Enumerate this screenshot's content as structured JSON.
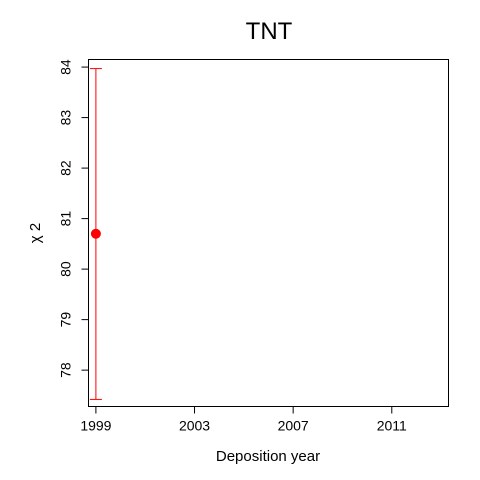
{
  "chart_data": {
    "type": "scatter",
    "title": "TNT",
    "xlabel": "Deposition year",
    "ylabel": "χ 2",
    "xlim": [
      1998.7,
      2013.3
    ],
    "ylim": [
      77.28,
      84.15
    ],
    "xticks": [
      1999,
      2003,
      2007,
      2011
    ],
    "xtick_labels": [
      "1999",
      "2003",
      "2007",
      "2011"
    ],
    "yticks": [
      78,
      79,
      80,
      81,
      82,
      83,
      84
    ],
    "ytick_labels": [
      "78",
      "79",
      "80",
      "81",
      "82",
      "83",
      "84"
    ],
    "grid": false,
    "series": [
      {
        "points": [
          {
            "x": 1999,
            "y": 80.7,
            "ylow": 77.42,
            "yhigh": 83.97
          }
        ],
        "color": "#ff0000"
      }
    ]
  }
}
